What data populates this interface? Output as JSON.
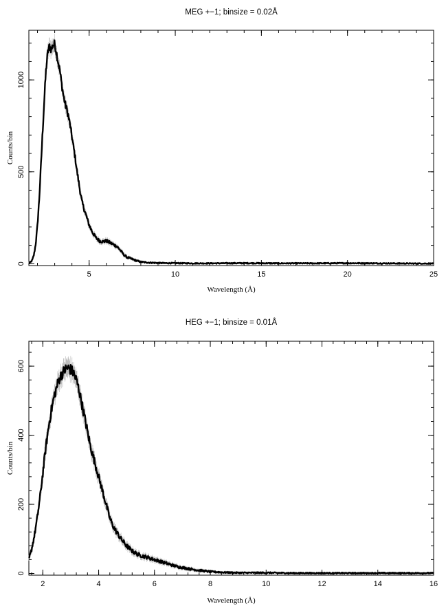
{
  "chart_data": [
    {
      "type": "line",
      "title": "MEG +−1; binsize = 0.02Å",
      "xlabel": "Wavelength (Å)",
      "ylabel": "Counts/bin",
      "xlim": [
        1.5,
        25
      ],
      "ylim": [
        -10,
        1270
      ],
      "x_ticks": [
        5,
        10,
        15,
        20,
        25
      ],
      "x_tick_labels": [
        "5",
        "10",
        "15",
        "20",
        "25"
      ],
      "y_ticks": [
        0,
        500,
        1000
      ],
      "y_tick_labels": [
        "0",
        "500",
        "1000"
      ],
      "grid": false,
      "series": [
        {
          "x": [
            1.5,
            1.6,
            1.7,
            1.8,
            1.9,
            2.0,
            2.1,
            2.2,
            2.3,
            2.4,
            2.5,
            2.6,
            2.7,
            2.8,
            2.9,
            3.0,
            3.1,
            3.2,
            3.3,
            3.4,
            3.5,
            3.6,
            3.7,
            3.8,
            3.9,
            4.0,
            4.1,
            4.2,
            4.3,
            4.4,
            4.5,
            4.6,
            4.8,
            5.0,
            5.2,
            5.4,
            5.6,
            5.8,
            6.0,
            6.2,
            6.4,
            6.6,
            6.8,
            7.0,
            7.2,
            7.5,
            7.8,
            8.0,
            8.5,
            9.0,
            9.5,
            10.0,
            11.0,
            12.0,
            14.0,
            16.0,
            18.0,
            20.0,
            22.0,
            24.0,
            25.0
          ],
          "values": [
            5,
            8,
            20,
            50,
            110,
            210,
            350,
            530,
            720,
            900,
            1060,
            1150,
            1185,
            1165,
            1190,
            1195,
            1150,
            1100,
            1050,
            980,
            920,
            870,
            840,
            800,
            750,
            690,
            630,
            570,
            500,
            440,
            380,
            330,
            270,
            210,
            170,
            140,
            125,
            120,
            125,
            115,
            105,
            95,
            75,
            50,
            35,
            25,
            15,
            10,
            6,
            4,
            3,
            3,
            2,
            2,
            3,
            2,
            2,
            3,
            2,
            1,
            1
          ]
        }
      ]
    },
    {
      "type": "line",
      "title": "HEG +−1; binsize = 0.01Å",
      "xlabel": "Wavelength (Å)",
      "ylabel": "Counts/bin",
      "xlim": [
        1.5,
        16
      ],
      "ylim": [
        -5,
        672
      ],
      "x_ticks": [
        2,
        4,
        6,
        8,
        10,
        12,
        14,
        16
      ],
      "x_tick_labels": [
        "2",
        "4",
        "6",
        "8",
        "10",
        "12",
        "14",
        "16"
      ],
      "y_ticks": [
        0,
        200,
        400,
        600
      ],
      "y_tick_labels": [
        "0",
        "200",
        "400",
        "600"
      ],
      "grid": false,
      "series": [
        {
          "x": [
            1.5,
            1.6,
            1.7,
            1.8,
            1.9,
            2.0,
            2.1,
            2.2,
            2.3,
            2.4,
            2.5,
            2.6,
            2.7,
            2.8,
            2.9,
            3.0,
            3.1,
            3.2,
            3.3,
            3.4,
            3.5,
            3.6,
            3.7,
            3.8,
            3.9,
            4.0,
            4.1,
            4.2,
            4.3,
            4.4,
            4.5,
            4.6,
            4.8,
            5.0,
            5.2,
            5.4,
            5.6,
            5.8,
            6.0,
            6.2,
            6.4,
            6.6,
            6.8,
            7.0,
            7.2,
            7.5,
            7.8,
            8.0,
            8.5,
            9.0,
            9.5,
            10.0,
            11.0,
            12.0,
            13.0,
            14.0,
            15.0,
            16.0
          ],
          "values": [
            40,
            70,
            110,
            160,
            220,
            290,
            360,
            420,
            470,
            510,
            540,
            565,
            580,
            590,
            595,
            590,
            580,
            560,
            530,
            490,
            450,
            410,
            370,
            340,
            310,
            280,
            250,
            220,
            190,
            160,
            140,
            125,
            100,
            80,
            65,
            55,
            50,
            45,
            40,
            35,
            30,
            25,
            20,
            17,
            14,
            10,
            7,
            5,
            3,
            2,
            2,
            2,
            1,
            1,
            1,
            1,
            1,
            1
          ]
        }
      ]
    }
  ]
}
